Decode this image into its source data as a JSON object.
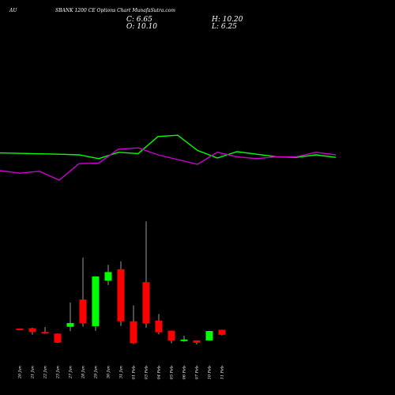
{
  "header": {
    "exchange": "AU",
    "subtitle": "SBANK 1200 CE Options  Chart MunafaSutra.com",
    "close_label": "C: 6.65",
    "open_label": "O: 10.10",
    "high_label": "H: 10.20",
    "low_label": "L: 6.25"
  },
  "colors": {
    "background": "#000000",
    "up": "#00ff00",
    "down": "#ff0000",
    "wick": "#999999",
    "line_upper": "#00ff00",
    "line_lower": "#cc00cc"
  },
  "chart_data": {
    "type": "candlestick",
    "x": [
      "20 Jan",
      "21 Jan",
      "22 Jan",
      "23 Jan",
      "27 Jan",
      "28 Jan",
      "29 Jan",
      "30 Jan",
      "31 Jan",
      "01 Feb",
      "03 Feb",
      "04 Feb",
      "05 Feb",
      "06 Feb",
      "07 Feb",
      "10 Feb",
      "11 Feb"
    ],
    "candles": [
      {
        "o": 11.0,
        "h": 11.0,
        "l": 10.0,
        "c": 10.0
      },
      {
        "o": 11.2,
        "h": 11.6,
        "l": 6.7,
        "c": 8.6
      },
      {
        "o": 8.6,
        "h": 12.0,
        "l": 7.4,
        "c": 7.5
      },
      {
        "o": 7.5,
        "h": 7.5,
        "l": 1.0,
        "c": 1.2
      },
      {
        "o": 12.2,
        "h": 29.0,
        "l": 9.2,
        "c": 14.8
      },
      {
        "o": 31.0,
        "h": 60.0,
        "l": 12.3,
        "c": 14.6
      },
      {
        "o": 12.6,
        "h": 47.0,
        "l": 9.4,
        "c": 47.0
      },
      {
        "o": 44.0,
        "h": 55.0,
        "l": 41.0,
        "c": 50.0
      },
      {
        "o": 52.0,
        "h": 57.5,
        "l": 12.8,
        "c": 16.0
      },
      {
        "o": 16.0,
        "h": 27.0,
        "l": 0.3,
        "c": 0.8
      },
      {
        "o": 43.0,
        "h": 85.0,
        "l": 11.5,
        "c": 14.5
      },
      {
        "o": 16.5,
        "h": 21.0,
        "l": 7.0,
        "c": 8.4
      },
      {
        "o": 9.5,
        "h": 9.5,
        "l": 0.8,
        "c": 2.8
      },
      {
        "o": 3.2,
        "h": 6.0,
        "l": 1.8,
        "c": 3.4
      },
      {
        "o": 2.8,
        "h": 2.8,
        "l": 0.0,
        "c": 1.2
      },
      {
        "o": 2.8,
        "h": 9.4,
        "l": 2.8,
        "c": 9.3
      },
      {
        "o": 10.1,
        "h": 10.2,
        "l": 6.25,
        "c": 6.65
      }
    ],
    "line_x": [
      0,
      75,
      100,
      125,
      150,
      175,
      200,
      225,
      250,
      275,
      300,
      325,
      350,
      375,
      400,
      425
    ],
    "line_upper": [
      41.5,
      40.5,
      40.0,
      37.0,
      42.0,
      41.0,
      54.5,
      55.5,
      43.5,
      37.5,
      42.5,
      40.5,
      38.5,
      38.0,
      40.0,
      38.0
    ],
    "line_lower": [
      27.5,
      25.5,
      27.0,
      20.0,
      33.0,
      33.5,
      44.5,
      45.5,
      40.0,
      32.5,
      42.0,
      38.5,
      37.0,
      38.5,
      38.5,
      42.0,
      40.0
    ],
    "line_lower_x": [
      0,
      25,
      50,
      75,
      100,
      125,
      150,
      175,
      200,
      250,
      275,
      300,
      325,
      350,
      375,
      400,
      425
    ],
    "ylim": [
      0,
      95
    ],
    "grid": false
  }
}
